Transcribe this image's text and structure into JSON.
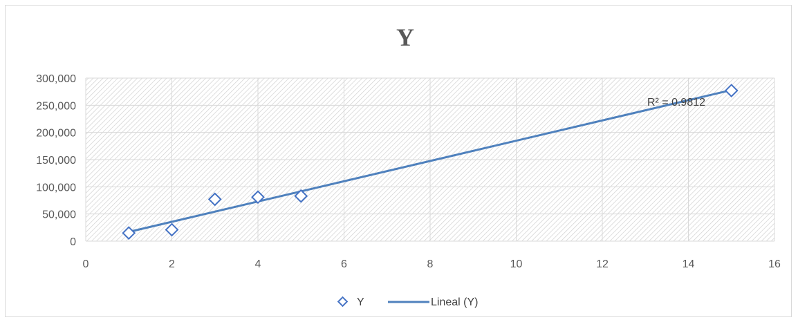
{
  "chart_data": {
    "type": "scatter",
    "title": "Y",
    "xlabel": "",
    "ylabel": "",
    "xlim": [
      0,
      16
    ],
    "ylim": [
      0,
      300000
    ],
    "x_ticks": [
      0,
      2,
      4,
      6,
      8,
      10,
      12,
      14,
      16
    ],
    "y_ticks": [
      0,
      50000,
      100000,
      150000,
      200000,
      250000,
      300000
    ],
    "x_tick_labels": [
      "0",
      "2",
      "4",
      "6",
      "8",
      "10",
      "12",
      "14",
      "16"
    ],
    "y_tick_labels": [
      "0",
      "50,000",
      "100,000",
      "150,000",
      "200,000",
      "250,000",
      "300,000"
    ],
    "grid": true,
    "legend_position": "bottom",
    "series": [
      {
        "name": "Y",
        "marker": "diamond-open",
        "color": "#4472c4",
        "x": [
          1,
          2,
          3,
          4,
          5,
          15
        ],
        "y": [
          15000,
          21000,
          77000,
          81000,
          83000,
          277000
        ]
      }
    ],
    "trendline": {
      "name": "Lineal (Y)",
      "type": "linear",
      "color": "#4f81bd",
      "x_range": [
        1,
        15
      ],
      "y_range": [
        17000,
        278000
      ],
      "r_squared_label": "R² = 0.9812"
    }
  }
}
